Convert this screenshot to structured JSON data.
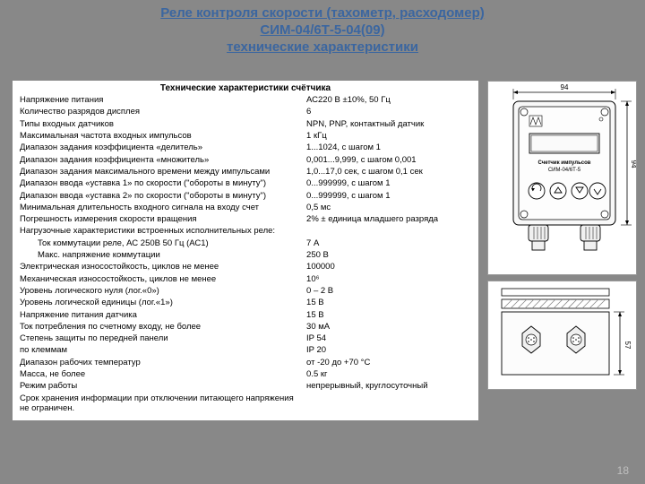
{
  "title": {
    "line1": "Реле контроля скорости (тахометр, расходомер)",
    "line2": "СИМ-04/6Т-5-04(09)",
    "line3": "технические характеристики",
    "color": "#3b66a0"
  },
  "table": {
    "heading": "Технические характеристики счётчика",
    "rows": [
      {
        "label": "Напряжение питания",
        "value": "АС220 В ±10%, 50 Гц"
      },
      {
        "label": "Количество разрядов дисплея",
        "value": "6"
      },
      {
        "label": "Типы входных датчиков",
        "value": "NPN, PNP, контактный датчик"
      },
      {
        "label": "Максимальная частота входных импульсов",
        "value": "1 кГц"
      },
      {
        "label": "Диапазон задания коэффициента «делитель»",
        "value": "1...1024, с шагом 1"
      },
      {
        "label": "Диапазон задания коэффициента «множитель»",
        "value": "0,001...9,999, с шагом 0,001"
      },
      {
        "label": "Диапазон задания максимального времени между импульсами",
        "value": "1,0...17,0 сек, с шагом 0,1 сек"
      },
      {
        "label": "Диапазон ввода «уставка 1» по скорости (\"обороты в минуту\")",
        "value": "0...999999, с шагом 1"
      },
      {
        "label": "Диапазон ввода «уставка 2» по скорости (\"обороты в минуту\")",
        "value": "0...999999, с шагом 1"
      },
      {
        "label": "Минимальная длительность входного сигнала на входу счет",
        "value": "0,5 мс"
      },
      {
        "label": "Погрешность измерения скорости вращения",
        "value": "2% ± единица младшего разряда"
      },
      {
        "label": "Нагрузочные характеристики встроенных исполнительных реле:",
        "value": ""
      },
      {
        "label": "Ток коммутации реле, АС 250В 50 Гц (АС1)",
        "value": "7 А",
        "indent": true
      },
      {
        "label": "Макс. напряжение коммутации",
        "value": "250 В",
        "indent": true
      },
      {
        "label": "Электрическая износостойкость, циклов не менее",
        "value": "100000"
      },
      {
        "label": "Механическая износостойкость, циклов не менее",
        "value": "10⁶"
      },
      {
        "label": "Уровень логического нуля (лог.«0»)",
        "value": "0 – 2 В"
      },
      {
        "label": "Уровень логической единицы (лог.«1»)",
        "value": "15 В"
      },
      {
        "label": "Напряжение питания датчика",
        "value": "15 В"
      },
      {
        "label": "Ток потребления по счетному входу, не более",
        "value": "30 мА"
      },
      {
        "label": "Степень защиты        по передней панели",
        "value": "IP 54"
      },
      {
        "label": "                                по клеммам",
        "value": "IP 20"
      },
      {
        "label": "Диапазон рабочих температур",
        "value": "от -20 до +70 °С"
      },
      {
        "label": "Масса, не более",
        "value": "0.5 кг"
      },
      {
        "label": "Режим работы",
        "value": "непрерывный, круглосуточный"
      },
      {
        "label": "Срок хранения информации при отключении питающего напряжения не ограничен.",
        "value": ""
      }
    ]
  },
  "diagram_front": {
    "width_dim": "94",
    "height_dim": "94",
    "label1": "Счетчик импульсов",
    "label2": "СИМ-04/6Т-5",
    "colors": {
      "bg": "#ffffff",
      "stroke": "#000000",
      "screen": "#e8e8e8",
      "body": "#f4f4f4"
    }
  },
  "diagram_back": {
    "height_dim": "57",
    "colors": {
      "bg": "#ffffff",
      "stroke": "#000000",
      "body": "#f0f0f0",
      "hatch": "#cccccc"
    }
  },
  "page_number": "18",
  "background_color": "#888888"
}
